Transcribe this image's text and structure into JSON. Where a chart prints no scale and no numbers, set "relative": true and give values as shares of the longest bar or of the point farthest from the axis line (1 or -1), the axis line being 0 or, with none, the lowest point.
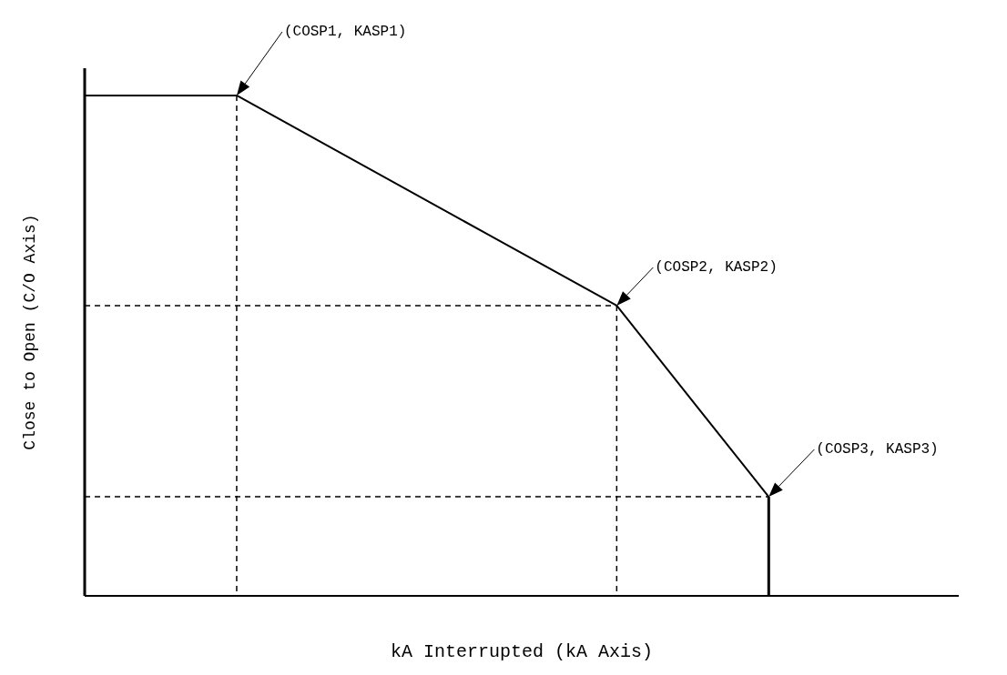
{
  "chart_data": {
    "type": "line",
    "relative": true,
    "xlabel": "kA Interrupted (kA Axis)",
    "ylabel": "Close to Open (C/O Axis)",
    "categories": [
      null,
      null,
      null,
      null,
      null,
      null,
      null,
      null,
      null,
      null,
      null,
      null,
      null,
      null,
      null,
      null,
      null,
      null,
      null,
      null,
      null,
      null,
      null,
      null
    ],
    "series": [
      {
        "color": "#000000",
        "values": [
          1,
          null,
          null,
          null,
          1,
          null,
          null,
          null,
          null,
          null,
          null,
          null,
          null,
          null,
          0.58,
          null,
          null,
          null,
          0.198,
          null,
          null,
          null,
          null,
          null
        ]
      }
    ],
    "ref_lines": [
      {
        "axis": "y",
        "value": 0.58,
        "line_style": "dashed",
        "color": "#000000"
      },
      {
        "axis": "y",
        "value": 0.198,
        "line_style": "dashed",
        "color": "#000000"
      }
    ],
    "annotations": [
      "(COSP1, KASP1)",
      "(COSP2, KASP2)",
      "(COSP3, KASP3)"
    ]
  }
}
